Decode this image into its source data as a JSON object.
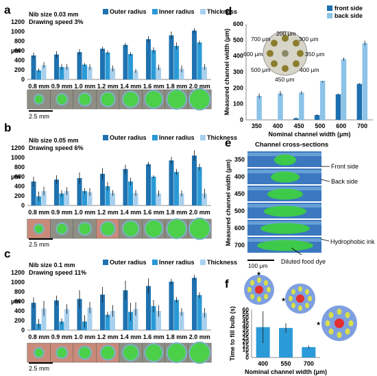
{
  "panel_labels": [
    "a",
    "b",
    "c",
    "d",
    "e",
    "f"
  ],
  "colors": {
    "outer": "#1f72b0",
    "inner": "#2a9ad6",
    "thick": "#a8d0ee",
    "front": "#1c6fb0",
    "back": "#8cc3e8",
    "f_bar": "#2b9ad8"
  },
  "scale_bar_abc": "2.5 mm",
  "chart_data": [
    {
      "id": "a",
      "type": "bar",
      "annotation": [
        "Nib size 0.03 mm",
        "Drawing speed 3%"
      ],
      "categories": [
        "0.8 mm",
        "0.9 mm",
        "1.0 mm",
        "1.2 mm",
        "1.4 mm",
        "1.6 mm",
        "1.8 mm",
        "2.0 mm"
      ],
      "ylabel": "μm",
      "ylim": [
        0,
        1200
      ],
      "yticks": [
        "0",
        "200",
        "400",
        "600",
        "800",
        "1000",
        "1200"
      ],
      "series": [
        {
          "name": "Outer radius",
          "values": [
            500,
            520,
            570,
            640,
            720,
            840,
            920,
            1020
          ],
          "errors": [
            60,
            70,
            60,
            40,
            40,
            60,
            80,
            50
          ]
        },
        {
          "name": "Inner radius",
          "values": [
            190,
            260,
            310,
            560,
            530,
            610,
            700,
            770
          ],
          "errors": [
            40,
            60,
            30,
            40,
            40,
            60,
            70,
            40
          ]
        },
        {
          "name": "Thickness",
          "values": [
            300,
            260,
            260,
            230,
            180,
            250,
            220,
            260
          ],
          "errors": [
            60,
            60,
            60,
            60,
            40,
            60,
            70,
            60
          ]
        }
      ]
    },
    {
      "id": "b",
      "type": "bar",
      "annotation": [
        "Nib size 0.05 mm",
        "Drawing speed 6%"
      ],
      "categories": [
        "0.8 mm",
        "0.9 mm",
        "1.0 mm",
        "1.2 mm",
        "1.4 mm",
        "1.6 mm",
        "1.8 mm",
        "2.0 mm"
      ],
      "ylabel": "μm",
      "ylim": [
        0,
        1200
      ],
      "yticks": [
        "0",
        "200",
        "400",
        "600",
        "800",
        "1000",
        "1200"
      ],
      "series": [
        {
          "name": "Outer radius",
          "values": [
            500,
            540,
            570,
            660,
            760,
            860,
            940,
            1040
          ],
          "errors": [
            100,
            90,
            120,
            120,
            90,
            50,
            70,
            110
          ]
        },
        {
          "name": "Inner radius",
          "values": [
            190,
            250,
            300,
            400,
            500,
            600,
            700,
            800
          ],
          "errors": [
            100,
            70,
            60,
            90,
            80,
            30,
            60,
            70
          ]
        },
        {
          "name": "Thickness",
          "values": [
            300,
            300,
            280,
            260,
            260,
            250,
            250,
            250
          ],
          "errors": [
            90,
            80,
            80,
            60,
            60,
            60,
            60,
            100
          ]
        }
      ]
    },
    {
      "id": "c",
      "type": "bar",
      "annotation": [
        "Nib size 0.1 mm",
        "Drawing speed 11%"
      ],
      "categories": [
        "0.8 mm",
        "0.9 mm",
        "1.0 mm",
        "1.2 mm",
        "1.4 mm",
        "1.6 mm",
        "1.8 mm",
        "2.0 mm"
      ],
      "ylabel": "μm",
      "ylim": [
        0,
        1200
      ],
      "yticks": [
        "0",
        "200",
        "400",
        "600",
        "800",
        "1000",
        "1200"
      ],
      "series": [
        {
          "name": "Outer radius",
          "values": [
            570,
            620,
            650,
            740,
            830,
            920,
            1010,
            1090
          ],
          "errors": [
            110,
            100,
            180,
            160,
            200,
            160,
            60,
            60
          ]
        },
        {
          "name": "Inner radius",
          "values": [
            130,
            180,
            180,
            320,
            380,
            500,
            630,
            730
          ],
          "errors": [
            100,
            60,
            130,
            60,
            190,
            130,
            60,
            60
          ]
        },
        {
          "name": "Thickness",
          "values": [
            450,
            440,
            470,
            400,
            440,
            400,
            380,
            360
          ],
          "errors": [
            160,
            100,
            120,
            120,
            140,
            120,
            80,
            100
          ]
        }
      ]
    },
    {
      "id": "d",
      "type": "bar",
      "categories": [
        "350",
        "400",
        "450",
        "500",
        "600",
        "700"
      ],
      "xlabel": "Nominal channel width (μm)",
      "ylabel": "Measured channel width (μm)",
      "ylim": [
        0,
        600
      ],
      "yticks": [
        "0",
        "100",
        "200",
        "300",
        "400",
        "500",
        "600"
      ],
      "series": [
        {
          "name": "front side",
          "values": [
            0,
            0,
            10,
            30,
            160,
            225
          ],
          "errors": [
            0,
            0,
            5,
            5,
            5,
            5
          ]
        },
        {
          "name": "back side",
          "values": [
            150,
            165,
            170,
            245,
            380,
            480
          ],
          "errors": [
            15,
            15,
            10,
            10,
            10,
            15
          ]
        }
      ],
      "inset_labels": [
        "200 μm",
        "300 μm",
        "350 μm",
        "400 μm",
        "450 μm",
        "500 μm",
        "600 μm",
        "700 μm"
      ]
    },
    {
      "id": "f",
      "type": "bar",
      "categories": [
        "400",
        "550",
        "700"
      ],
      "xlabel": "Nominal channel width (μm)",
      "ylabel": "Time to fill bulb (s)",
      "ylim": [
        0,
        60
      ],
      "yticks": [
        "0",
        "5",
        "10",
        "15",
        "20",
        "25",
        "30",
        "35",
        "40",
        "45",
        "50",
        "55",
        "60"
      ],
      "series": [
        {
          "values": [
            38,
            37,
            13
          ],
          "errors": [
            20,
            6,
            2
          ]
        }
      ]
    }
  ],
  "panel_e": {
    "title": "Channel cross-sections",
    "ylabel": "Measured channel width (μm)",
    "row_labels": [
      "350",
      "400",
      "450",
      "500",
      "600",
      "700"
    ],
    "annotations": [
      "Front side",
      "Back side",
      "Hydrophobic ink",
      "Diluted food dye"
    ],
    "scale_bar": "100 μm"
  }
}
